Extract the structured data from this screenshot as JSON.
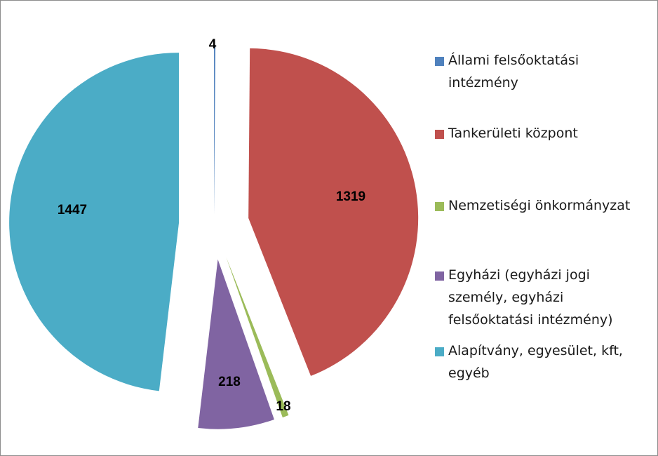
{
  "chart_data": {
    "type": "pie",
    "exploded": true,
    "start_angle_deg": 0,
    "direction": "clockwise",
    "slices": [
      {
        "label": "Állami felsőoktatási intézmény",
        "value": 4,
        "color": "#4f81bd"
      },
      {
        "label": "Tankerületi központ",
        "value": 1319,
        "color": "#c0504d"
      },
      {
        "label": "Nemzetiségi önkormányzat",
        "value": 18,
        "color": "#9bbb59"
      },
      {
        "label": "Egyházi (egyházi jogi személy, egyházi felsőoktatási intézmény)",
        "value": 218,
        "color": "#8064a2"
      },
      {
        "label": "Alapítvány, egyesület, kft, egyéb",
        "value": 1447,
        "color": "#4bacc6"
      }
    ],
    "legend_position": "right",
    "data_labels": [
      "4",
      "1319",
      "18",
      "218",
      "1447"
    ]
  },
  "legend": {
    "items": [
      {
        "lines": [
          "Állami felsőoktatási",
          "intézmény"
        ]
      },
      {
        "lines": [
          "Tankerületi központ"
        ]
      },
      {
        "lines": [
          "Nemzetiségi önkormányzat"
        ]
      },
      {
        "lines": [
          "Egyházi (egyházi jogi",
          "személy, egyházi",
          "felsőoktatási intézmény)"
        ]
      },
      {
        "lines": [
          "Alapítvány, egyesület, kft,",
          "egyéb"
        ]
      }
    ]
  }
}
